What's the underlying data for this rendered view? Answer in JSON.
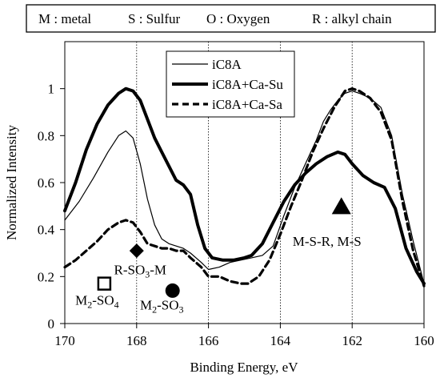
{
  "header_box": {
    "items": [
      "M : metal",
      "S : Sulfur",
      "O :  Oxygen",
      "R : alkyl chain"
    ]
  },
  "chart_data": {
    "type": "line",
    "title": "",
    "xlabel": "Binding Energy, eV",
    "ylabel": "Normalized Intensity",
    "xlim": [
      170,
      160
    ],
    "ylim": [
      0,
      1.2
    ],
    "x_reversed": true,
    "xticks": [
      170,
      168,
      166,
      164,
      162,
      160
    ],
    "yticks": [
      0,
      0.2,
      0.4,
      0.6,
      0.8,
      1
    ],
    "vertical_gridlines": [
      168,
      166,
      164,
      162
    ],
    "legend": {
      "placement": "top-center",
      "entries": [
        "iC8A",
        "iC8A+Ca-Su",
        "iC8A+Ca-Sa"
      ]
    },
    "series": [
      {
        "name": "iC8A",
        "style": "thin-solid",
        "color": "#000000",
        "points": [
          [
            170,
            0.44
          ],
          [
            169.6,
            0.52
          ],
          [
            169.2,
            0.62
          ],
          [
            168.8,
            0.73
          ],
          [
            168.5,
            0.8
          ],
          [
            168.3,
            0.82
          ],
          [
            168.1,
            0.79
          ],
          [
            167.9,
            0.68
          ],
          [
            167.7,
            0.53
          ],
          [
            167.5,
            0.42
          ],
          [
            167.3,
            0.36
          ],
          [
            167.1,
            0.34
          ],
          [
            166.9,
            0.33
          ],
          [
            166.7,
            0.32
          ],
          [
            166.5,
            0.3
          ],
          [
            166.2,
            0.26
          ],
          [
            166,
            0.23
          ],
          [
            165.7,
            0.24
          ],
          [
            165.4,
            0.26
          ],
          [
            165.1,
            0.27
          ],
          [
            164.8,
            0.28
          ],
          [
            164.5,
            0.29
          ],
          [
            164.2,
            0.33
          ],
          [
            163.9,
            0.46
          ],
          [
            163.6,
            0.58
          ],
          [
            163.3,
            0.68
          ],
          [
            163,
            0.78
          ],
          [
            162.8,
            0.86
          ],
          [
            162.6,
            0.91
          ],
          [
            162.4,
            0.95
          ],
          [
            162.2,
            0.98
          ],
          [
            162,
            0.99
          ],
          [
            161.8,
            0.98
          ],
          [
            161.5,
            0.96
          ],
          [
            161.2,
            0.92
          ],
          [
            160.9,
            0.8
          ],
          [
            160.6,
            0.55
          ],
          [
            160.3,
            0.35
          ],
          [
            160,
            0.17
          ]
        ]
      },
      {
        "name": "iC8A+Ca-Su",
        "style": "thick-solid",
        "color": "#000000",
        "points": [
          [
            170,
            0.48
          ],
          [
            169.7,
            0.6
          ],
          [
            169.4,
            0.74
          ],
          [
            169.1,
            0.85
          ],
          [
            168.8,
            0.93
          ],
          [
            168.5,
            0.98
          ],
          [
            168.3,
            1
          ],
          [
            168.1,
            0.99
          ],
          [
            167.9,
            0.95
          ],
          [
            167.7,
            0.87
          ],
          [
            167.5,
            0.79
          ],
          [
            167.3,
            0.73
          ],
          [
            167.1,
            0.67
          ],
          [
            166.9,
            0.61
          ],
          [
            166.7,
            0.59
          ],
          [
            166.5,
            0.55
          ],
          [
            166.3,
            0.42
          ],
          [
            166.1,
            0.32
          ],
          [
            165.9,
            0.28
          ],
          [
            165.6,
            0.27
          ],
          [
            165.3,
            0.27
          ],
          [
            165,
            0.28
          ],
          [
            164.8,
            0.29
          ],
          [
            164.5,
            0.34
          ],
          [
            164.2,
            0.43
          ],
          [
            163.9,
            0.52
          ],
          [
            163.6,
            0.59
          ],
          [
            163.3,
            0.64
          ],
          [
            163,
            0.68
          ],
          [
            162.7,
            0.71
          ],
          [
            162.4,
            0.73
          ],
          [
            162.2,
            0.72
          ],
          [
            162,
            0.68
          ],
          [
            161.7,
            0.63
          ],
          [
            161.4,
            0.6
          ],
          [
            161.1,
            0.58
          ],
          [
            160.8,
            0.49
          ],
          [
            160.5,
            0.32
          ],
          [
            160.2,
            0.22
          ],
          [
            160,
            0.17
          ]
        ]
      },
      {
        "name": "iC8A+Ca-Sa",
        "style": "thick-dashed",
        "color": "#000000",
        "points": [
          [
            170,
            0.24
          ],
          [
            169.7,
            0.27
          ],
          [
            169.4,
            0.31
          ],
          [
            169.1,
            0.35
          ],
          [
            168.8,
            0.4
          ],
          [
            168.5,
            0.43
          ],
          [
            168.3,
            0.44
          ],
          [
            168.1,
            0.43
          ],
          [
            167.9,
            0.39
          ],
          [
            167.7,
            0.34
          ],
          [
            167.5,
            0.33
          ],
          [
            167.3,
            0.32
          ],
          [
            167.1,
            0.32
          ],
          [
            166.9,
            0.31
          ],
          [
            166.7,
            0.31
          ],
          [
            166.5,
            0.28
          ],
          [
            166.2,
            0.24
          ],
          [
            166,
            0.2
          ],
          [
            165.7,
            0.2
          ],
          [
            165.4,
            0.18
          ],
          [
            165.1,
            0.17
          ],
          [
            164.9,
            0.17
          ],
          [
            164.6,
            0.2
          ],
          [
            164.3,
            0.27
          ],
          [
            164,
            0.38
          ],
          [
            163.7,
            0.5
          ],
          [
            163.4,
            0.61
          ],
          [
            163.1,
            0.73
          ],
          [
            162.8,
            0.83
          ],
          [
            162.5,
            0.92
          ],
          [
            162.2,
            0.99
          ],
          [
            162,
            1
          ],
          [
            161.8,
            0.99
          ],
          [
            161.5,
            0.96
          ],
          [
            161.2,
            0.9
          ],
          [
            160.9,
            0.78
          ],
          [
            160.6,
            0.52
          ],
          [
            160.3,
            0.31
          ],
          [
            160,
            0.16
          ]
        ]
      }
    ],
    "annotations": [
      {
        "label_main": "M",
        "label_sub": "2",
        "label_tail": "-SO",
        "label_sub2": "4",
        "marker": "open-square",
        "marker_x": 168.9,
        "marker_y": 0.17,
        "label_x": 169.1,
        "label_y": 0.08
      },
      {
        "label_main": "R-SO",
        "label_sub": "3",
        "label_tail": "-M",
        "label_sub2": "",
        "marker": "filled-diamond",
        "marker_x": 168,
        "marker_y": 0.31,
        "label_x": 167.9,
        "label_y": 0.21
      },
      {
        "label_main": "M",
        "label_sub": "2",
        "label_tail": "-SO",
        "label_sub2": "3",
        "marker": "filled-circle",
        "marker_x": 167,
        "marker_y": 0.14,
        "label_x": 167.3,
        "label_y": 0.06
      },
      {
        "label_main": "M-S-R,  M-S",
        "label_sub": "",
        "label_tail": "",
        "label_sub2": "",
        "marker": "filled-triangle",
        "marker_x": 162.3,
        "marker_y": 0.5,
        "label_x": 162.7,
        "label_y": 0.33
      }
    ]
  }
}
